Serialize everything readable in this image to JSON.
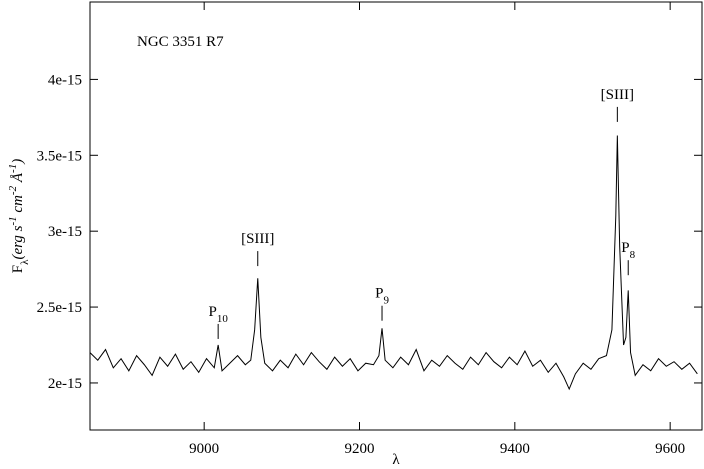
{
  "chart_data": {
    "type": "line",
    "annotation": "NGC 3351 R7",
    "x_label": "λ",
    "y_label": {
      "parts": [
        "F",
        "λ",
        "(erg s",
        "-1",
        " cm",
        "-2",
        " Å",
        "-1",
        ")"
      ],
      "styles": [
        "normal",
        "sub",
        "italic",
        "super",
        "italic",
        "super",
        "italic",
        "super",
        "italic"
      ]
    },
    "xlim": [
      8853,
      9641
    ],
    "xticks": [
      9000,
      9200,
      9400,
      9600
    ],
    "ylim": [
      1.69e-15,
      4.51e-15
    ],
    "yticks": [
      2e-15,
      2.5e-15,
      3e-15,
      3.5e-15,
      4e-15
    ],
    "line_labels": [
      {
        "text": "P",
        "sub": "10",
        "x": 9018,
        "y": 2.29e-15
      },
      {
        "text": "[SIII]",
        "x": 9069,
        "y": 2.77e-15
      },
      {
        "text": "P",
        "sub": "9",
        "x": 9229,
        "y": 2.41e-15
      },
      {
        "text": "[SIII]",
        "x": 9532,
        "y": 3.72e-15
      },
      {
        "text": "P",
        "sub": "8",
        "x": 9546,
        "y": 2.71e-15
      }
    ],
    "series": [
      {
        "color": "#000000",
        "x": [
          8853,
          8863,
          8873,
          8883,
          8893,
          8903,
          8913,
          8923,
          8933,
          8943,
          8953,
          8963,
          8973,
          8983,
          8993,
          9003,
          9013,
          9018,
          9023,
          9033,
          9043,
          9053,
          9060,
          9065,
          9069,
          9073,
          9078,
          9088,
          9098,
          9108,
          9118,
          9128,
          9138,
          9148,
          9158,
          9168,
          9178,
          9188,
          9198,
          9208,
          9218,
          9225,
          9229,
          9233,
          9243,
          9253,
          9263,
          9273,
          9283,
          9293,
          9303,
          9313,
          9323,
          9333,
          9343,
          9353,
          9363,
          9373,
          9383,
          9393,
          9403,
          9413,
          9423,
          9433,
          9443,
          9453,
          9463,
          9470,
          9478,
          9488,
          9498,
          9508,
          9518,
          9525,
          9530,
          9532,
          9535,
          9540,
          9543,
          9546,
          9549,
          9555,
          9565,
          9575,
          9585,
          9595,
          9605,
          9615,
          9625,
          9635
        ],
        "values": [
          2.2e-15,
          2.15e-15,
          2.22e-15,
          2.1e-15,
          2.16e-15,
          2.08e-15,
          2.18e-15,
          2.12e-15,
          2.05e-15,
          2.17e-15,
          2.11e-15,
          2.19e-15,
          2.09e-15,
          2.14e-15,
          2.07e-15,
          2.16e-15,
          2.1e-15,
          2.25e-15,
          2.08e-15,
          2.13e-15,
          2.18e-15,
          2.12e-15,
          2.15e-15,
          2.35e-15,
          2.69e-15,
          2.3e-15,
          2.13e-15,
          2.08e-15,
          2.15e-15,
          2.1e-15,
          2.19e-15,
          2.12e-15,
          2.2e-15,
          2.14e-15,
          2.09e-15,
          2.17e-15,
          2.11e-15,
          2.16e-15,
          2.08e-15,
          2.13e-15,
          2.12e-15,
          2.18e-15,
          2.36e-15,
          2.15e-15,
          2.1e-15,
          2.17e-15,
          2.12e-15,
          2.22e-15,
          2.08e-15,
          2.15e-15,
          2.11e-15,
          2.18e-15,
          2.13e-15,
          2.09e-15,
          2.17e-15,
          2.12e-15,
          2.2e-15,
          2.14e-15,
          2.1e-15,
          2.17e-15,
          2.12e-15,
          2.21e-15,
          2.11e-15,
          2.15e-15,
          2.07e-15,
          2.13e-15,
          2.04e-15,
          1.96e-15,
          2.06e-15,
          2.13e-15,
          2.09e-15,
          2.16e-15,
          2.18e-15,
          2.35e-15,
          3.1e-15,
          3.63e-15,
          2.9e-15,
          2.25e-15,
          2.3e-15,
          2.61e-15,
          2.2e-15,
          2.05e-15,
          2.12e-15,
          2.08e-15,
          2.16e-15,
          2.11e-15,
          2.14e-15,
          2.09e-15,
          2.13e-15,
          2.06e-15
        ]
      }
    ]
  }
}
